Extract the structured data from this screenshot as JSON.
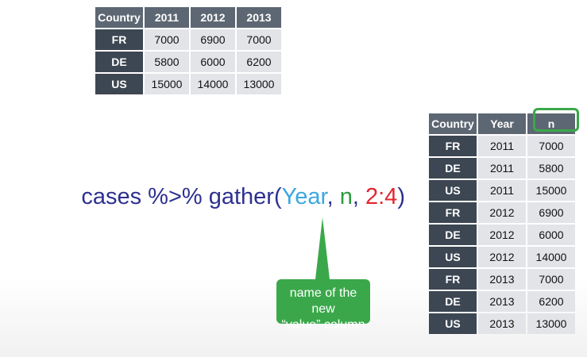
{
  "wide_table": {
    "header": [
      "Country",
      "2011",
      "2012",
      "2013"
    ],
    "rows": [
      [
        "FR",
        "7000",
        "6900",
        "7000"
      ],
      [
        "DE",
        "5800",
        "6000",
        "6200"
      ],
      [
        "US",
        "15000",
        "14000",
        "13000"
      ]
    ]
  },
  "code": {
    "prefix": "cases %>% gather(",
    "key_col": "Year",
    "sep1": ", ",
    "value_col": "n",
    "sep2": ", ",
    "range": "2:4",
    "suffix": ")"
  },
  "callout": {
    "line1": "name of the new",
    "line2": "“value” column"
  },
  "tidy_table": {
    "header": [
      "Country",
      "Year",
      "n"
    ],
    "rows": [
      [
        "FR",
        "2011",
        "7000"
      ],
      [
        "DE",
        "2011",
        "5800"
      ],
      [
        "US",
        "2011",
        "15000"
      ],
      [
        "FR",
        "2012",
        "6900"
      ],
      [
        "DE",
        "2012",
        "6000"
      ],
      [
        "US",
        "2012",
        "14000"
      ],
      [
        "FR",
        "2013",
        "7000"
      ],
      [
        "DE",
        "2013",
        "6200"
      ],
      [
        "US",
        "2013",
        "13000"
      ]
    ]
  },
  "colors": {
    "header": "#5d6773",
    "row_header": "#3d4753",
    "cell": "#e2e4e8",
    "code_base": "#2d3190",
    "code_key": "#3ba7e0",
    "code_value": "#2e9a3e",
    "code_range": "#e0262e",
    "callout": "#3aa84a"
  }
}
